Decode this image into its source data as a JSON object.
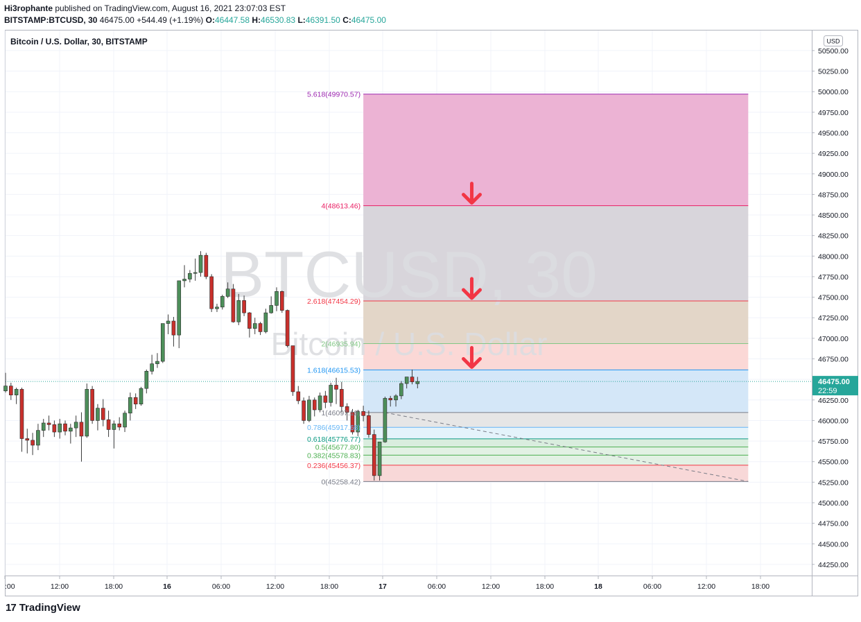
{
  "header": {
    "author": "Hi3rophante",
    "published_text": "published on TradingView.com, August 16, 2021 23:07:03 EST",
    "symbol": "BITSTAMP:BTCUSD, 30",
    "last": "46475.00",
    "change": "+544.49 (+1.19%)",
    "o_label": "O:",
    "o": "46447.58",
    "h_label": "H:",
    "h": "46530.83",
    "l_label": "L:",
    "l": "46391.50",
    "c_label": "C:",
    "c": "46475.00"
  },
  "pane_title": "Bitcoin / U.S. Dollar, 30, BITSTAMP",
  "watermark": {
    "line1": "BTCUSD, 30",
    "line2": "Bitcoin / U.S. Dollar"
  },
  "currency_button": "USD",
  "price_tag": {
    "value": "46475.00",
    "countdown": "22:59"
  },
  "footer": {
    "logo_mark": "17",
    "brand": "TradingView"
  },
  "colors": {
    "up": "#26a69a",
    "up_body": "#4d8f5a",
    "down": "#c9302c",
    "arrow": "#f23645"
  },
  "chart_data": {
    "type": "candlestick",
    "y_axis": {
      "min": 44250,
      "max": 50500,
      "step": 250,
      "side": "right",
      "ticks": [
        "50500.00",
        "50250.00",
        "50000.00",
        "49750.00",
        "49500.00",
        "49250.00",
        "49000.00",
        "48750.00",
        "48500.00",
        "48250.00",
        "48000.00",
        "47750.00",
        "47500.00",
        "47250.00",
        "47000.00",
        "46750.00",
        "46500.00",
        "46250.00",
        "46000.00",
        "45750.00",
        "45500.00",
        "45250.00",
        "45000.00",
        "44750.00",
        "44500.00",
        "44250.00"
      ]
    },
    "x_axis": {
      "ticks": [
        ":00",
        "12:00",
        "18:00",
        "16",
        "06:00",
        "12:00",
        "18:00",
        "17",
        "06:00",
        "12:00",
        "18:00",
        "18",
        "06:00",
        "12:00",
        "18:00"
      ]
    },
    "last_price": 46475.0,
    "fib_levels": [
      {
        "ratio": "0",
        "price": 45258.42,
        "label": "0(45258.42)",
        "color": "#787b86",
        "fill": "#f8d6d6"
      },
      {
        "ratio": "0.236",
        "price": 45456.37,
        "label": "0.236(45456.37)",
        "color": "#f23645",
        "fill": "#e0f0e3"
      },
      {
        "ratio": "0.382",
        "price": 45578.83,
        "label": "0.382(45578.83)",
        "color": "#4caf50",
        "fill": "#e0f0e3"
      },
      {
        "ratio": "0.5",
        "price": 45677.8,
        "label": "0.5(45677.80)",
        "color": "#4caf50",
        "fill": "#d7ecdc"
      },
      {
        "ratio": "0.618",
        "price": 45776.77,
        "label": "0.618(45776.77)",
        "color": "#089981",
        "fill": "#e3f2fb"
      },
      {
        "ratio": "0.786",
        "price": 45917.68,
        "label": "0.786(45917.68)",
        "color": "#64b5f6",
        "fill": "#e5e5e5"
      },
      {
        "ratio": "1",
        "price": 46097.18,
        "label": "1(46097.18)",
        "color": "#787b86",
        "fill": "#d2e6f8"
      },
      {
        "ratio": "1.618",
        "price": 46615.53,
        "label": "1.618(46615.53)",
        "color": "#2196f3",
        "fill": "#fbd6d4"
      },
      {
        "ratio": "2",
        "price": 46935.94,
        "label": "2(46935.94)",
        "color": "#81c784",
        "fill": "#e2d4c5"
      },
      {
        "ratio": "2.618",
        "price": 47454.29,
        "label": "2.618(47454.29)",
        "color": "#f23645",
        "fill": "#d6d3d9"
      },
      {
        "ratio": "4",
        "price": 48613.46,
        "label": "4(48613.46)",
        "color": "#e91e63",
        "fill": "#ebafd2"
      },
      {
        "ratio": "5.618",
        "price": 49970.57,
        "label": "5.618(49970.57)",
        "color": "#9c27b0",
        "fill": null
      }
    ],
    "fib_area": {
      "start_bar": 66,
      "end_bar": 137
    },
    "trend_line": {
      "from_bar": 70,
      "from_price": 46097.18,
      "to_bar": 137,
      "to_price": 45258.42
    },
    "arrows": [
      {
        "bar": 86,
        "price": 48613.46
      },
      {
        "bar": 86,
        "price": 47454.29
      },
      {
        "bar": 86,
        "price": 46615.53
      }
    ],
    "candles": [
      [
        46360,
        46580,
        46340,
        46420
      ],
      [
        46420,
        46460,
        46250,
        46310
      ],
      [
        46310,
        46400,
        46200,
        46380
      ],
      [
        46380,
        46400,
        45620,
        45780
      ],
      [
        45780,
        45900,
        45600,
        45760
      ],
      [
        45760,
        45850,
        45580,
        45700
      ],
      [
        45700,
        45960,
        45640,
        45880
      ],
      [
        45880,
        46020,
        45800,
        45970
      ],
      [
        45970,
        46060,
        45880,
        45950
      ],
      [
        45950,
        46000,
        45800,
        45860
      ],
      [
        45860,
        46020,
        45780,
        45960
      ],
      [
        45960,
        46000,
        45820,
        45870
      ],
      [
        45870,
        45960,
        45720,
        45910
      ],
      [
        45910,
        46060,
        45800,
        45980
      ],
      [
        45980,
        46100,
        45500,
        45810
      ],
      [
        45810,
        46450,
        45790,
        46380
      ],
      [
        46380,
        46420,
        45960,
        46000
      ],
      [
        46000,
        46200,
        45880,
        46150
      ],
      [
        46150,
        46260,
        45930,
        46010
      ],
      [
        46010,
        46120,
        45800,
        45890
      ],
      [
        45890,
        46000,
        45660,
        45960
      ],
      [
        45960,
        46040,
        45880,
        45920
      ],
      [
        45920,
        46120,
        45860,
        46090
      ],
      [
        46090,
        46340,
        46000,
        46280
      ],
      [
        46280,
        46330,
        46140,
        46200
      ],
      [
        46200,
        46410,
        46180,
        46390
      ],
      [
        46390,
        46620,
        46330,
        46600
      ],
      [
        46600,
        46800,
        46560,
        46690
      ],
      [
        46690,
        46820,
        46640,
        46720
      ],
      [
        46720,
        47180,
        46700,
        47180
      ],
      [
        47180,
        47290,
        47050,
        47210
      ],
      [
        47210,
        47260,
        46900,
        47040
      ],
      [
        47040,
        47700,
        46880,
        47700
      ],
      [
        47700,
        47890,
        47620,
        47720
      ],
      [
        47720,
        47830,
        47680,
        47790
      ],
      [
        47790,
        47970,
        47700,
        47800
      ],
      [
        47800,
        48060,
        47750,
        48010
      ],
      [
        48010,
        48040,
        47720,
        47750
      ],
      [
        47750,
        47780,
        47320,
        47360
      ],
      [
        47360,
        47420,
        47320,
        47380
      ],
      [
        47380,
        47530,
        47350,
        47510
      ],
      [
        47510,
        47680,
        47490,
        47600
      ],
      [
        47600,
        47660,
        47190,
        47200
      ],
      [
        47200,
        47540,
        47160,
        47460
      ],
      [
        47460,
        47520,
        47270,
        47310
      ],
      [
        47310,
        47320,
        47010,
        47120
      ],
      [
        47120,
        47250,
        47050,
        47180
      ],
      [
        47180,
        47200,
        47040,
        47080
      ],
      [
        47080,
        47360,
        47060,
        47310
      ],
      [
        47310,
        47510,
        47300,
        47400
      ],
      [
        47400,
        47620,
        47330,
        47570
      ],
      [
        47570,
        47580,
        47310,
        47340
      ],
      [
        47340,
        47350,
        46890,
        46910
      ],
      [
        46910,
        46910,
        46300,
        46350
      ],
      [
        46350,
        46420,
        46200,
        46240
      ],
      [
        46240,
        46280,
        45960,
        46000
      ],
      [
        46000,
        46300,
        45980,
        46250
      ],
      [
        46250,
        46280,
        46050,
        46130
      ],
      [
        46130,
        46340,
        46100,
        46300
      ],
      [
        46300,
        46360,
        46150,
        46220
      ],
      [
        46220,
        46460,
        46170,
        46430
      ],
      [
        46430,
        46520,
        46200,
        46380
      ],
      [
        46380,
        46470,
        46100,
        46170
      ],
      [
        46170,
        46210,
        46000,
        46100
      ],
      [
        46100,
        46140,
        45830,
        45860
      ],
      [
        45860,
        46130,
        45810,
        46110
      ],
      [
        46110,
        46180,
        45990,
        46060
      ],
      [
        46060,
        46120,
        45790,
        45830
      ],
      [
        45830,
        45890,
        45270,
        45330
      ],
      [
        45330,
        45690,
        45270,
        45740
      ],
      [
        45740,
        46290,
        45730,
        46270
      ],
      [
        46270,
        46300,
        46170,
        46250
      ],
      [
        46250,
        46320,
        46170,
        46300
      ],
      [
        46300,
        46480,
        46260,
        46450
      ],
      [
        46450,
        46530,
        46390,
        46530
      ],
      [
        46530,
        46620,
        46440,
        46470
      ],
      [
        46447.58,
        46530.83,
        46391.5,
        46475.0
      ]
    ]
  }
}
